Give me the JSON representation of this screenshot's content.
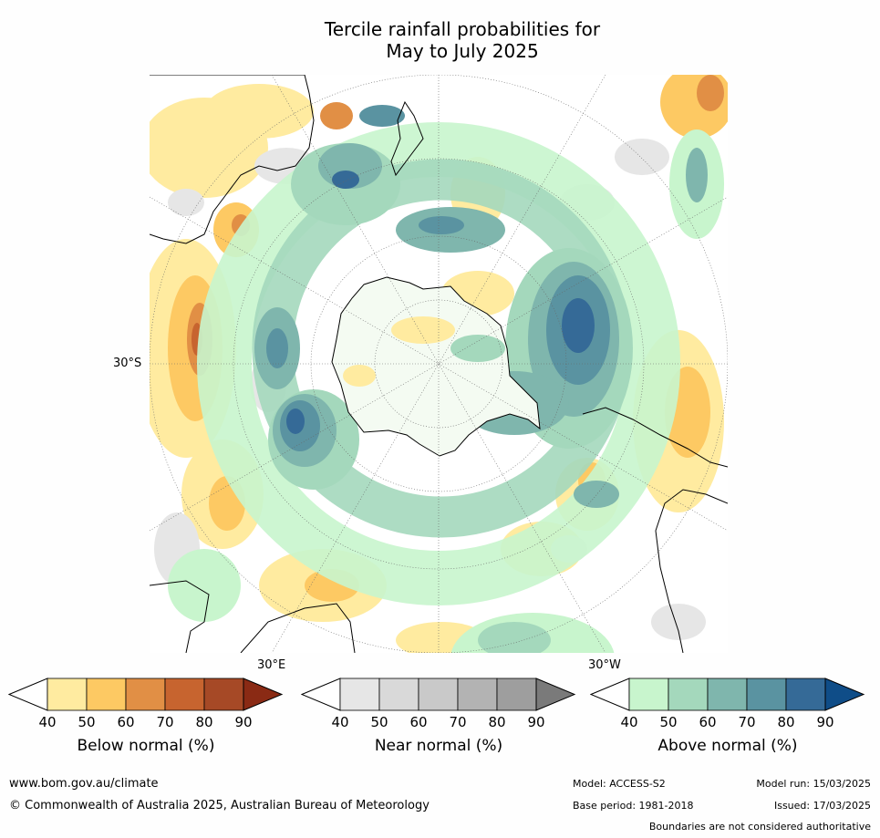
{
  "title": {
    "line1": "Tercile rainfall probabilities for",
    "line2": "May to July 2025"
  },
  "map": {
    "lat_label": "30°S",
    "lon_label_left": "30°E",
    "lon_label_right": "30°W"
  },
  "colorbars": [
    {
      "label": "Below normal (%)",
      "ticks": [
        "40",
        "50",
        "60",
        "70",
        "80",
        "90"
      ],
      "colors": [
        "#ffffff",
        "#ffeba0",
        "#fdc963",
        "#e18f45",
        "#c7642f",
        "#a64926",
        "#8a2a14"
      ]
    },
    {
      "label": "Near normal (%)",
      "ticks": [
        "40",
        "50",
        "60",
        "70",
        "80",
        "90"
      ],
      "colors": [
        "#ffffff",
        "#e6e6e6",
        "#d9d9d9",
        "#c9c9c9",
        "#b3b3b3",
        "#9e9e9e",
        "#7a7a7a"
      ]
    },
    {
      "label": "Above normal (%)",
      "ticks": [
        "40",
        "50",
        "60",
        "70",
        "80",
        "90"
      ],
      "colors": [
        "#ffffff",
        "#c8f5cd",
        "#a4d8bc",
        "#7fb6ad",
        "#5a93a1",
        "#356a97",
        "#0f4d88"
      ]
    }
  ],
  "footer": {
    "website": "www.bom.gov.au/climate",
    "copyright": "© Commonwealth of Australia 2025, Australian Bureau of Meteorology",
    "model": "Model: ACCESS-S2",
    "model_run": "Model run: 15/03/2025",
    "base_period": "Base period: 1981-2018",
    "issued": "Issued: 17/03/2025",
    "disclaimer": "Boundaries are not considered authoritative"
  }
}
